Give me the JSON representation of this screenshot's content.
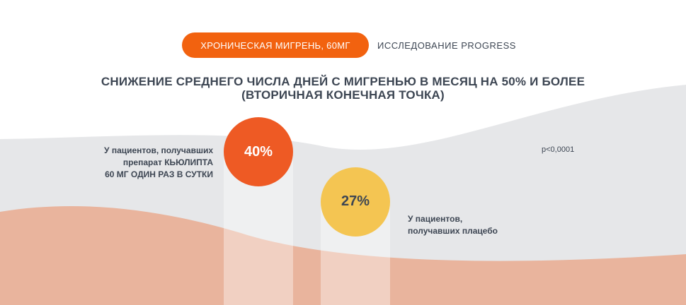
{
  "badge": {
    "label": "ХРОНИЧЕСКАЯ МИГРЕНЬ, 60МГ"
  },
  "study": {
    "label": "ИССЛЕДОВАНИЕ PROGRESS"
  },
  "title": {
    "line1": "СНИЖЕНИЕ СРЕДНЕГО ЧИСЛА ДНЕЙ С МИГРЕНЬЮ В МЕСЯЦ НА 50% И БОЛЕЕ",
    "line2": "(ВТОРИЧНАЯ КОНЕЧНАЯ ТОЧКА)"
  },
  "colors": {
    "orange": "#f2620f",
    "drug_circle": "#ee5a24",
    "placebo_circle": "#f4c552",
    "grey_band": "#e6e7e9",
    "salmon_band": "#e9b49d",
    "text": "#3d4653"
  },
  "chart_data": {
    "type": "bar",
    "categories": [
      "У пациентов, получавших препарат КЬЮЛИПТА 60 МГ ОДИН РАЗ В СУТКИ",
      "У пациентов, получавших плацебо"
    ],
    "values": [
      40,
      27
    ],
    "value_labels": [
      "40%",
      "27%"
    ],
    "annotation": "p<0,0001"
  },
  "labels": {
    "drug": [
      "У пациентов, получавших",
      "препарат КЬЮЛИПТА",
      "60 МГ ОДИН РАЗ В СУТКИ"
    ],
    "placebo": [
      "У пациентов,",
      "получавших плацебо"
    ]
  }
}
